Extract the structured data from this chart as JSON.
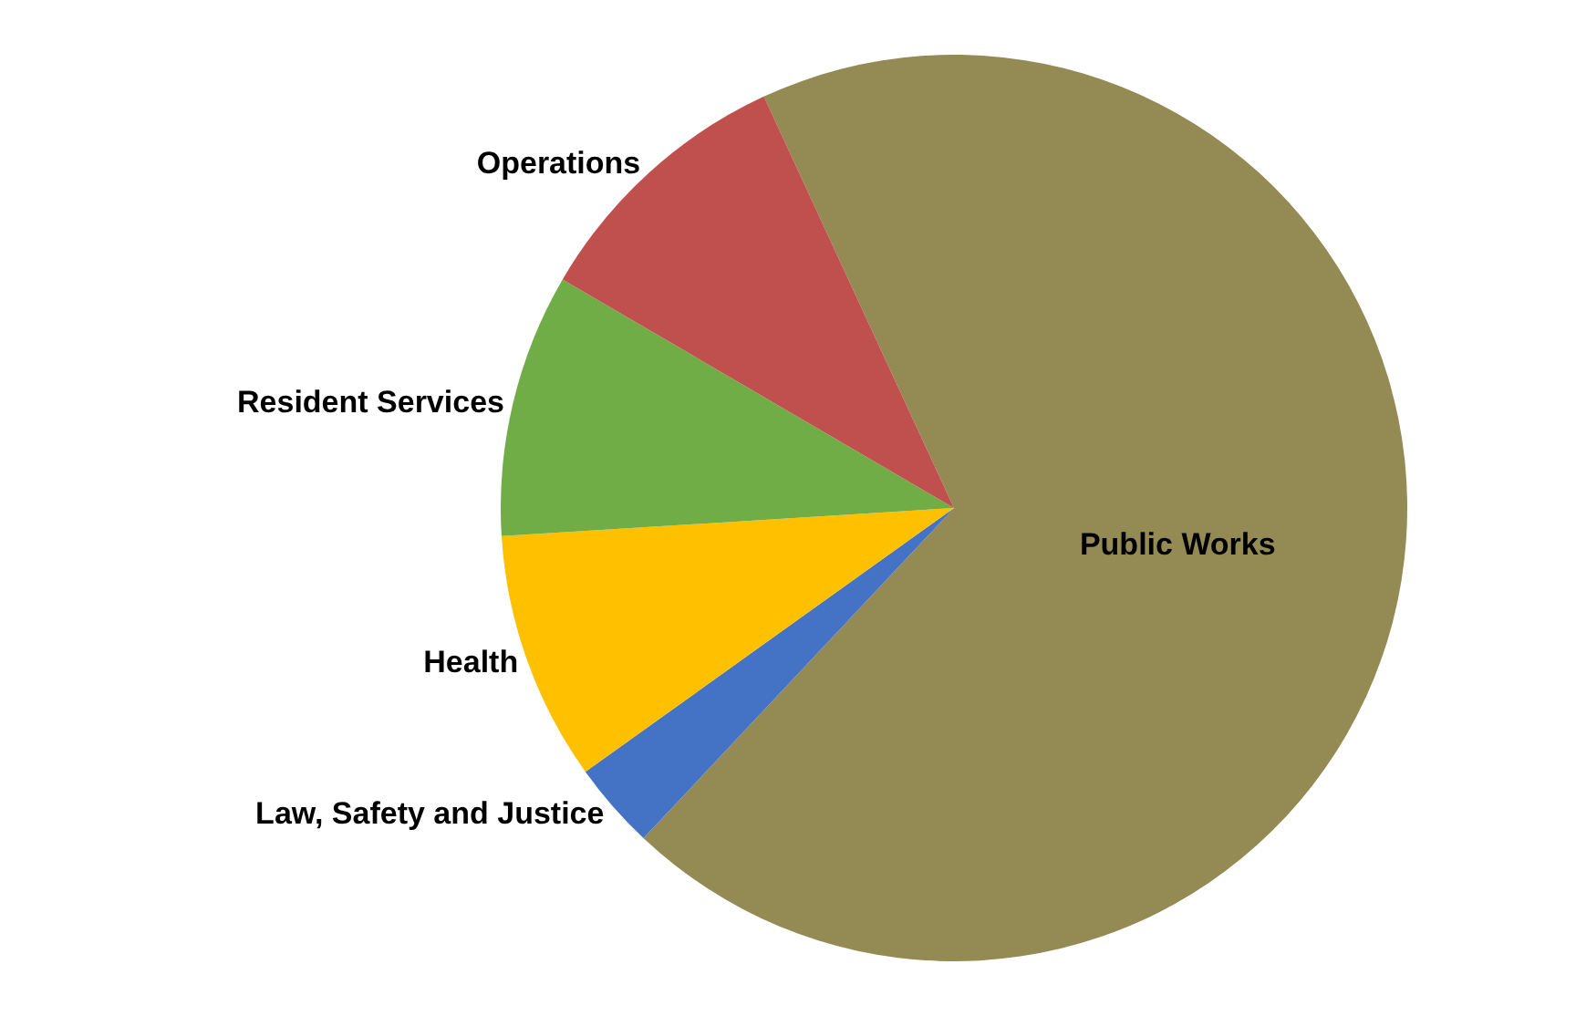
{
  "chart_data": {
    "type": "pie",
    "categories": [
      "Public Works",
      "Law, Safety and Justice",
      "Health",
      "Resident Services",
      "Operations"
    ],
    "values": [
      68.9,
      3.1,
      8.9,
      9.4,
      9.7
    ],
    "colors": [
      "#948a54",
      "#4472c4",
      "#ffc000",
      "#70ad47",
      "#c0504d"
    ],
    "legend": false
  }
}
